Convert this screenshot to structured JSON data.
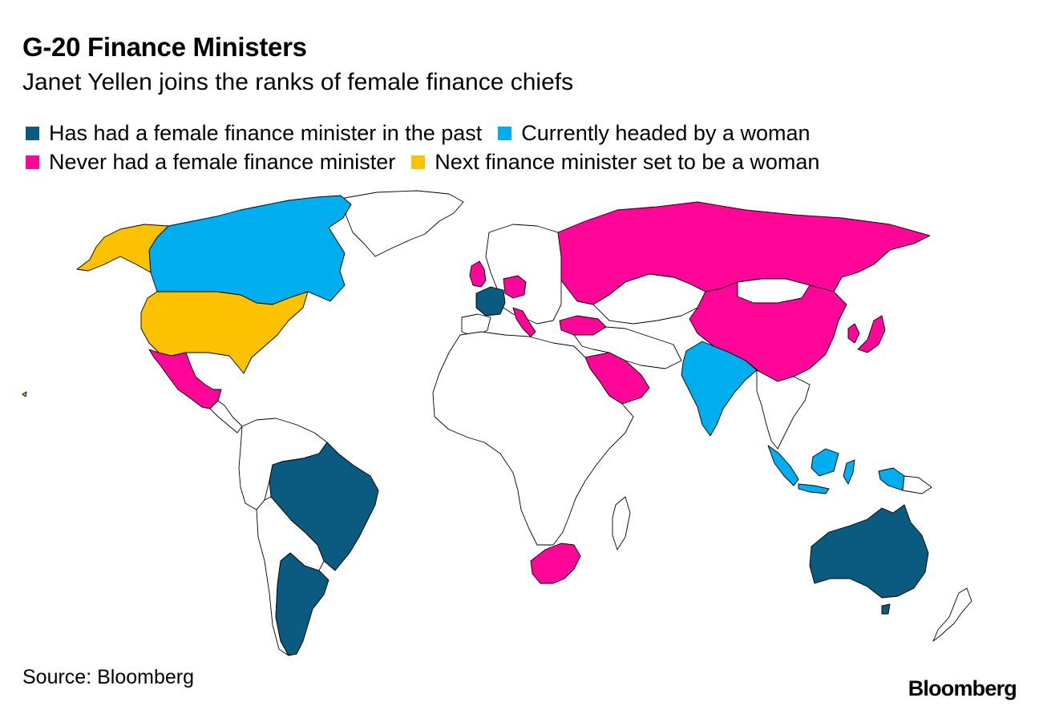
{
  "title": "G-20 Finance Ministers",
  "subtitle": "Janet Yellen joins the ranks of female finance chiefs",
  "legend": [
    {
      "label": "Has had a female finance minister in the past",
      "color": "#0b5a80",
      "key": "past"
    },
    {
      "label": "Currently headed by a woman",
      "color": "#00aeef",
      "key": "current"
    },
    {
      "label": "Never had a female finance minister",
      "color": "#ff0598",
      "key": "never"
    },
    {
      "label": "Next finance minister set to be a woman",
      "color": "#fcc100",
      "key": "next"
    }
  ],
  "source": "Source: Bloomberg",
  "brand": "Bloomberg",
  "categories": {
    "past": [
      "France",
      "Brazil",
      "Argentina",
      "Australia"
    ],
    "current": [
      "Canada",
      "India",
      "Indonesia"
    ],
    "never": [
      "United Kingdom",
      "Germany",
      "Italy",
      "Russia",
      "China",
      "Japan",
      "South Korea",
      "Turkey",
      "Saudi Arabia",
      "Mexico",
      "South Africa"
    ],
    "next": [
      "United States"
    ]
  },
  "colors": {
    "past": "#0b5a80",
    "current": "#00aeef",
    "never": "#ff0598",
    "next": "#fcc100",
    "other": "#ffffff",
    "border": "#000000"
  }
}
